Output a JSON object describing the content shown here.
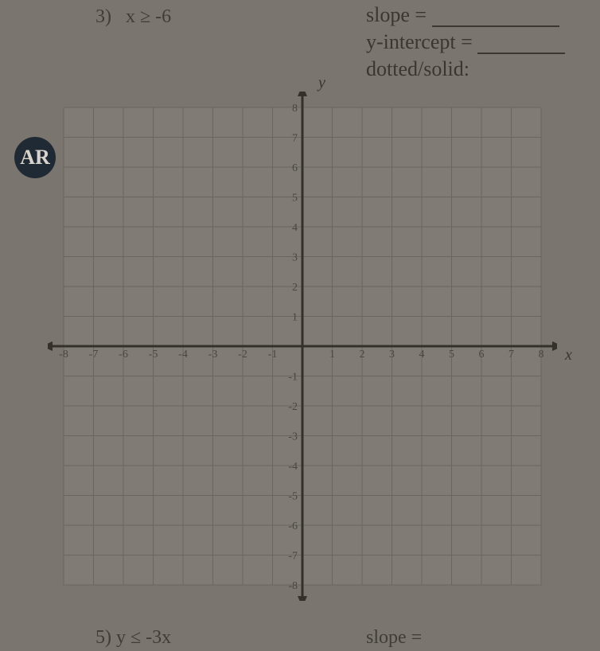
{
  "problem": {
    "number": "3)",
    "inequality": "x ≥ -6"
  },
  "info": {
    "slope_label": "slope =",
    "yint_label": "y-intercept =",
    "line_label": "dotted/solid:"
  },
  "axes": {
    "x_label": "x",
    "y_label": "y"
  },
  "badge": "AR",
  "grid": {
    "xmin": -8,
    "xmax": 8,
    "ymin": -8,
    "ymax": 8,
    "step": 1,
    "x_ticks": [
      -8,
      -7,
      -6,
      -5,
      -4,
      -3,
      -2,
      -1,
      1,
      2,
      3,
      4,
      5,
      6,
      7,
      8
    ],
    "y_ticks": [
      -8,
      -7,
      -6,
      -5,
      -4,
      -3,
      -2,
      -1,
      1,
      2,
      3,
      4,
      5,
      6,
      7,
      8
    ],
    "bg_color": "#807b74",
    "grid_color": "#6a665f",
    "axis_color": "#34302c",
    "tick_color": "#4a4640",
    "grid_stroke": 1,
    "axis_stroke": 3,
    "tick_fontsize": 14
  },
  "bottom": {
    "next_problem": "5)  y ≤ -3x",
    "next_slope": "slope ="
  }
}
